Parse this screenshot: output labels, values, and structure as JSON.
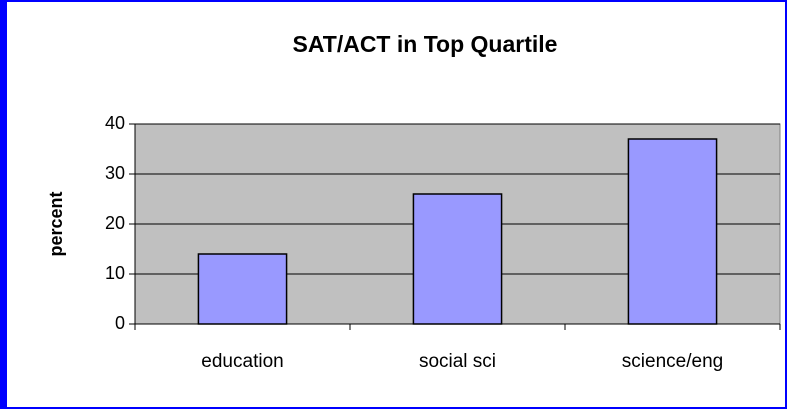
{
  "chart_data": {
    "type": "bar",
    "title": "SAT/ACT in Top Quartile",
    "y_label": "percent",
    "categories": [
      "education",
      "social sci",
      "science/eng"
    ],
    "values": [
      14,
      26,
      37
    ],
    "color": "#9999ff",
    "ylim": [
      0,
      40
    ],
    "yticks": [
      0,
      10,
      20,
      30,
      40
    ],
    "grid": true
  }
}
